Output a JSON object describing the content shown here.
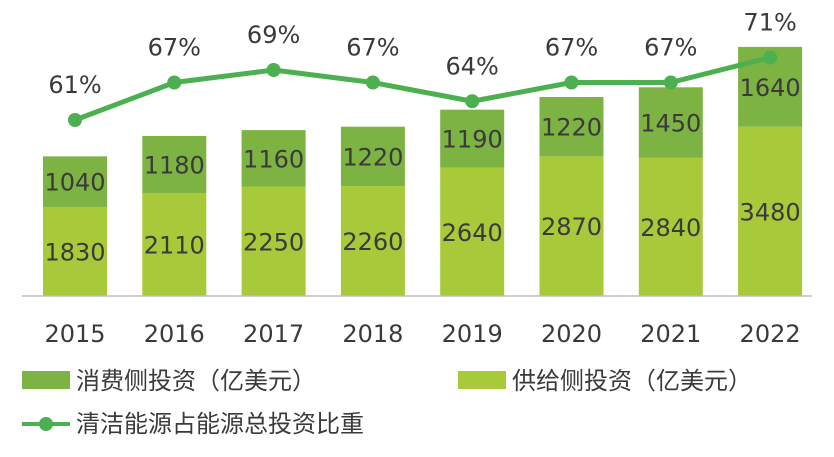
{
  "chart_data": {
    "type": "bar",
    "stacked": true,
    "categories": [
      "2015",
      "2016",
      "2017",
      "2018",
      "2019",
      "2020",
      "2021",
      "2022"
    ],
    "series": [
      {
        "name": "供给侧投资（亿美元）",
        "kind": "bar",
        "color": "#a8c93a",
        "values": [
          1830,
          2110,
          2250,
          2260,
          2640,
          2870,
          2840,
          3480
        ]
      },
      {
        "name": "消费侧投资（亿美元）",
        "kind": "bar",
        "color": "#7cb342",
        "values": [
          1040,
          1180,
          1160,
          1220,
          1190,
          1220,
          1450,
          1640
        ]
      },
      {
        "name": "清洁能源占能源总投资比重",
        "kind": "line",
        "color": "#4caf50",
        "values": [
          61,
          67,
          69,
          67,
          64,
          67,
          67,
          71
        ],
        "labels": [
          "61%",
          "67%",
          "69%",
          "67%",
          "64%",
          "67%",
          "67%",
          "71%"
        ]
      }
    ],
    "legend": {
      "position": "bottom",
      "items": [
        "消费侧投资（亿美元）",
        "供给侧投资（亿美元）",
        "清洁能源占能源总投资比重"
      ]
    },
    "grid": false
  }
}
